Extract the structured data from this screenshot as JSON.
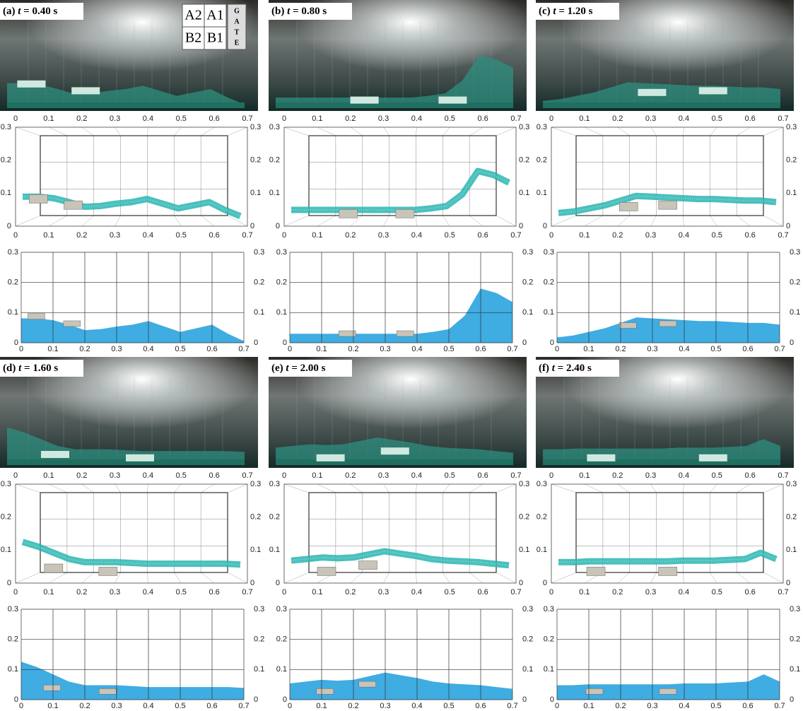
{
  "panels": [
    {
      "prefix": "(a)",
      "variable": "t",
      "time": "= 0.40 s"
    },
    {
      "prefix": "(b)",
      "variable": "t",
      "time": "= 0.80 s"
    },
    {
      "prefix": "(c)",
      "variable": "t",
      "time": "= 1.20 s"
    },
    {
      "prefix": "(d)",
      "variable": "t",
      "time": "= 1.60 s"
    },
    {
      "prefix": "(e)",
      "variable": "t",
      "time": "= 2.00 s"
    },
    {
      "prefix": "(f)",
      "variable": "t",
      "time": "= 2.40 s"
    }
  ],
  "legend": {
    "cells": [
      "A2",
      "A1",
      "B2",
      "B1"
    ],
    "gate": [
      "G",
      "A",
      "T",
      "E"
    ]
  },
  "axes": {
    "xticks": [
      0,
      0.1,
      0.2,
      0.3,
      0.4,
      0.5,
      0.6,
      0.7
    ],
    "yticks": [
      0,
      0.1,
      0.2,
      0.3
    ]
  }
}
